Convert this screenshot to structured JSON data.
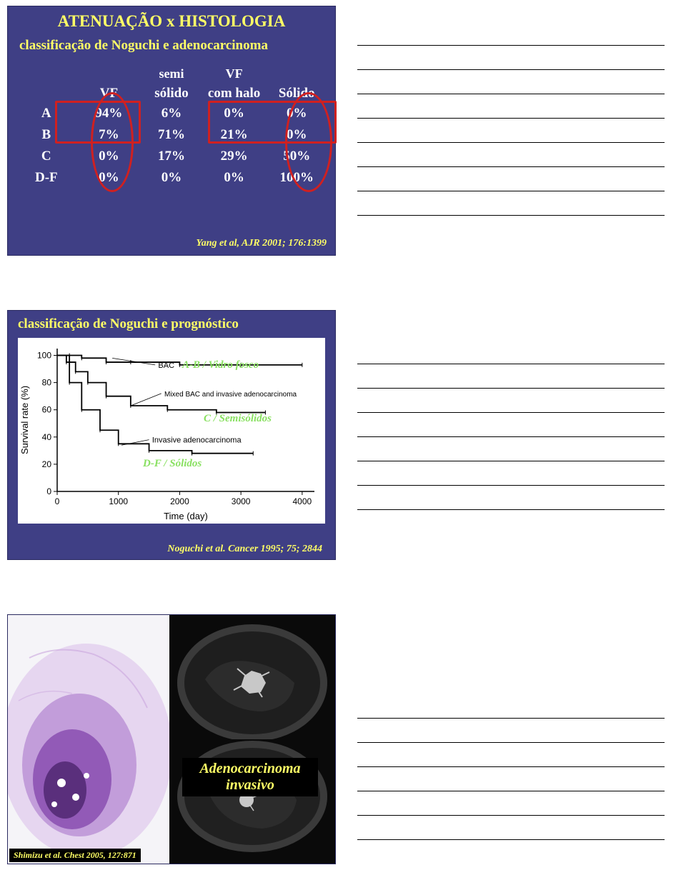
{
  "slide1": {
    "title": "ATENUAÇÃO x HISTOLOGIA",
    "subtitle": "classificação de Noguchi e adenocarcinoma",
    "headers": {
      "col1": "VF",
      "col2_top": "semi",
      "col2_bot": "sólido",
      "col3_top": "VF",
      "col3_bot": "com halo",
      "col4": "Sólido"
    },
    "rows": [
      {
        "label": "A",
        "vf": "94%",
        "semi": "6%",
        "halo": "0%",
        "solido": "0%"
      },
      {
        "label": "B",
        "vf": "7%",
        "semi": "71%",
        "halo": "21%",
        "solido": "0%"
      },
      {
        "label": "C",
        "vf": "0%",
        "semi": "17%",
        "halo": "29%",
        "solido": "50%"
      },
      {
        "label": "D-F",
        "vf": "0%",
        "semi": "0%",
        "halo": "0%",
        "solido": "100%"
      }
    ],
    "citation": "Yang et al, AJR 2001; 176:1399",
    "colors": {
      "bg": "#3f3f85",
      "title": "#ffff66",
      "text": "#ffffff",
      "red": "#d02020"
    }
  },
  "slide2": {
    "title": "classificação de Noguchi e prognóstico",
    "chart": {
      "type": "line",
      "xlabel": "Time (day)",
      "ylabel": "Survival rate (%)",
      "xlim": [
        0,
        4200
      ],
      "ylim": [
        0,
        105
      ],
      "xtick_step": 1000,
      "ytick_step": 20,
      "xticks": [
        0,
        1000,
        2000,
        3000,
        4000
      ],
      "yticks": [
        0,
        20,
        40,
        60,
        80,
        100
      ],
      "background_color": "#ffffff",
      "line_color": "#000000",
      "axis_fontsize": 12,
      "series": [
        {
          "name": "BAC",
          "label": "BAC",
          "points": [
            [
              0,
              100
            ],
            [
              200,
              100
            ],
            [
              400,
              98
            ],
            [
              800,
              95
            ],
            [
              1200,
              95
            ],
            [
              2000,
              93
            ],
            [
              3000,
              93
            ],
            [
              4000,
              93
            ]
          ]
        },
        {
          "name": "Mixed",
          "label": "Mixed BAC and invasive adenocarcinoma",
          "points": [
            [
              0,
              100
            ],
            [
              150,
              95
            ],
            [
              300,
              88
            ],
            [
              500,
              80
            ],
            [
              800,
              70
            ],
            [
              1200,
              63
            ],
            [
              1800,
              60
            ],
            [
              2600,
              58
            ],
            [
              3400,
              58
            ]
          ]
        },
        {
          "name": "Invasive",
          "label": "Invasive adenocarcinoma",
          "points": [
            [
              0,
              100
            ],
            [
              200,
              80
            ],
            [
              400,
              60
            ],
            [
              700,
              45
            ],
            [
              1000,
              35
            ],
            [
              1500,
              30
            ],
            [
              2200,
              28
            ],
            [
              3200,
              28
            ]
          ]
        }
      ]
    },
    "overlays": {
      "top": "A-B / Vidro fosco",
      "mid": "C / Semisólidos",
      "bot": "D-F / Sólidos"
    },
    "citation": "Noguchi et al. Cancer 1995; 75; 2844",
    "overlay_color": "#88e060"
  },
  "slide3": {
    "label_line1": "Adenocarcinoma",
    "label_line2": "invasivo",
    "citation": "Shimizu et al. Chest 2005, 127:871",
    "histology_colors": {
      "base": "#f5f4f8",
      "stain": "#aa6ec5",
      "dark": "#5a2f7c"
    },
    "ct_colors": {
      "bg": "#1a1a1a",
      "lung": "#4a4a4a",
      "nodule": "#c8c8c8"
    }
  },
  "notes": {
    "lines_slide1": 8,
    "lines_slide2": 7,
    "lines_slide3": 6
  }
}
